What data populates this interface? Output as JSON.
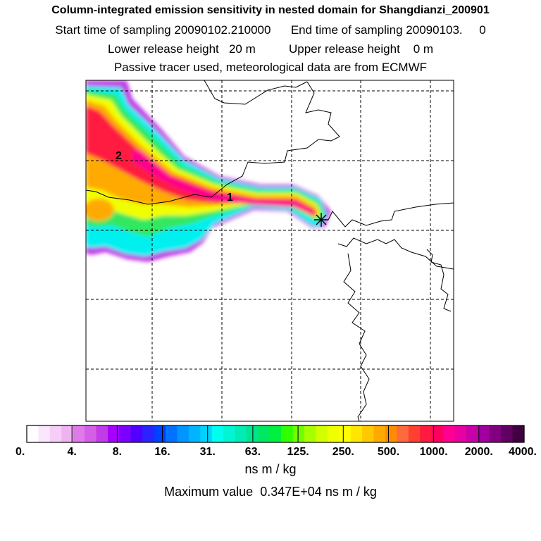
{
  "header": {
    "title": "Column-integrated emission sensitivity in nested domain for Shangdianzi_200901",
    "start_label": "Start time of sampling",
    "start_value": "20090102.210000",
    "end_label": "End time of sampling",
    "end_value": "20090103.",
    "end_suffix": "0",
    "lower_label": "Lower release height",
    "lower_value": "20 m",
    "upper_label": "Upper release height",
    "upper_value": "0 m",
    "note": "Passive tracer used, meteorological data are from ECMWF"
  },
  "chart_data": {
    "type": "heatmap",
    "title": "Column-integrated emission sensitivity in nested domain for Shangdianzi_200901",
    "colorbar": {
      "tick_labels": [
        "0.",
        "4.",
        "8.",
        "16.",
        "31.",
        "63.",
        "125.",
        "250.",
        "500.",
        "1000.",
        "2000.",
        "4000."
      ],
      "unit": "ns m / kg",
      "colors": [
        "#ffffff",
        "#fbe6fb",
        "#f6cdf6",
        "#efb4ef",
        "#e07ae8",
        "#d45fe6",
        "#c13ce6",
        "#a800ff",
        "#7a00ff",
        "#5000ff",
        "#2a22ff",
        "#0040ff",
        "#0072ff",
        "#0096ff",
        "#00b4ff",
        "#00d2ff",
        "#00ffee",
        "#00f5d2",
        "#00ecb4",
        "#00e48c",
        "#00e860",
        "#00f040",
        "#30ff00",
        "#70ff00",
        "#a8ff00",
        "#d2ff00",
        "#f0ff00",
        "#ffff00",
        "#ffe600",
        "#ffc800",
        "#ffaa00",
        "#ff8c00",
        "#ff6a3c",
        "#ff4030",
        "#ff1a40",
        "#ff0060",
        "#ff0090",
        "#e800a0",
        "#c800a8",
        "#a000a0",
        "#800080",
        "#600060",
        "#400040"
      ]
    },
    "trajectory_labels": [
      "1",
      "2"
    ],
    "receptor_marker": "*",
    "max_value_label": "Maximum value",
    "max_value": "0.347E+04",
    "max_value_unit": "ns m / kg"
  },
  "colors": {
    "frame": "#000000",
    "background": "#ffffff"
  }
}
